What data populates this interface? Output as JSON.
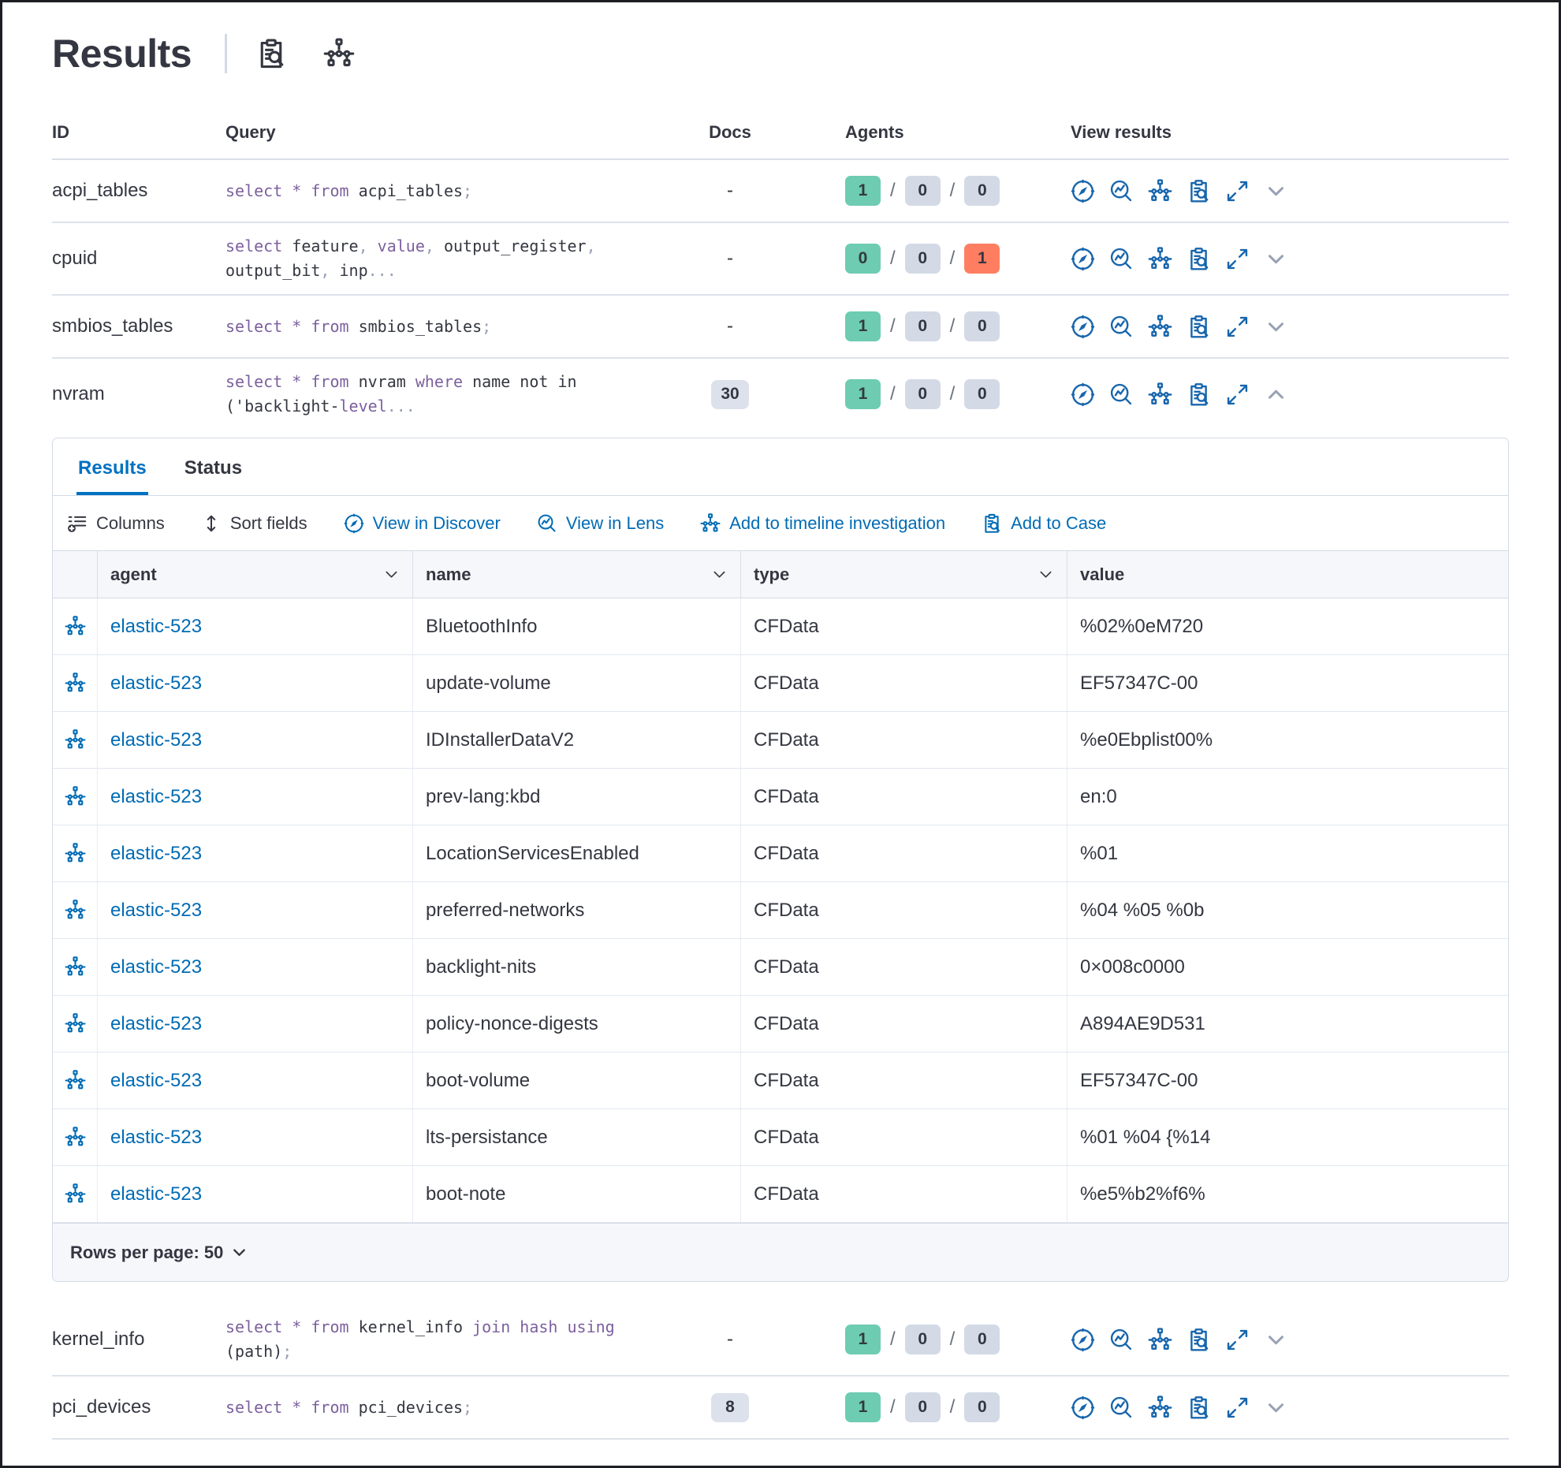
{
  "header": {
    "title": "Results",
    "icons": [
      "clipboard-search",
      "timeline"
    ]
  },
  "colors": {
    "link_blue": "#006bb4",
    "active_tab_blue": "#0071c2",
    "keyword_purple": "#7c609e",
    "badge_green": "#6dccb1",
    "badge_gray": "#d3dae6",
    "badge_red": "#ff7e62"
  },
  "table": {
    "headers": [
      "ID",
      "Query",
      "Docs",
      "Agents",
      "View results"
    ],
    "view_actions": [
      "view-in-discover",
      "view-in-lens",
      "add-to-timeline",
      "add-to-case",
      "expand-results"
    ],
    "rows_top": [
      {
        "id": "acpi_tables",
        "query": [
          [
            "select",
            "kw"
          ],
          [
            " * ",
            "kw"
          ],
          [
            "from",
            "kw"
          ],
          [
            " acpi_tables",
            "id"
          ],
          [
            ";",
            "pn"
          ]
        ],
        "docs": "-",
        "docs_badge": false,
        "agents": [
          [
            "1",
            "green"
          ],
          [
            "0",
            "gray"
          ],
          [
            "0",
            "gray"
          ]
        ],
        "expanded": false
      },
      {
        "id": "cpuid",
        "query": [
          [
            "select",
            "kw"
          ],
          [
            " feature",
            "id"
          ],
          [
            ",",
            "pn"
          ],
          [
            " value",
            "kw"
          ],
          [
            ",",
            "pn"
          ],
          [
            " output_register",
            "id"
          ],
          [
            ",",
            "pn"
          ],
          [
            "\noutput_bit",
            "id"
          ],
          [
            ",",
            "pn"
          ],
          [
            " inp",
            "id"
          ],
          [
            "...",
            "pn"
          ]
        ],
        "docs": "-",
        "docs_badge": false,
        "agents": [
          [
            "0",
            "green"
          ],
          [
            "0",
            "gray"
          ],
          [
            "1",
            "red"
          ]
        ],
        "expanded": false
      },
      {
        "id": "smbios_tables",
        "query": [
          [
            "select",
            "kw"
          ],
          [
            " * ",
            "kw"
          ],
          [
            "from",
            "kw"
          ],
          [
            " smbios_tables",
            "id"
          ],
          [
            ";",
            "pn"
          ]
        ],
        "docs": "-",
        "docs_badge": false,
        "agents": [
          [
            "1",
            "green"
          ],
          [
            "0",
            "gray"
          ],
          [
            "0",
            "gray"
          ]
        ],
        "expanded": false
      },
      {
        "id": "nvram",
        "query": [
          [
            "select",
            "kw"
          ],
          [
            " * ",
            "kw"
          ],
          [
            "from",
            "kw"
          ],
          [
            " nvram ",
            "id"
          ],
          [
            "where",
            "kw"
          ],
          [
            " name not in",
            "id"
          ],
          [
            "\n('backlight-",
            "id"
          ],
          [
            "level",
            "kw"
          ],
          [
            "...",
            "pn"
          ]
        ],
        "docs": "30",
        "docs_badge": true,
        "agents": [
          [
            "1",
            "green"
          ],
          [
            "0",
            "gray"
          ],
          [
            "0",
            "gray"
          ]
        ],
        "expanded": true
      }
    ],
    "rows_bottom": [
      {
        "id": "kernel_info",
        "query": [
          [
            "select",
            "kw"
          ],
          [
            " * ",
            "kw"
          ],
          [
            "from",
            "kw"
          ],
          [
            " kernel_info ",
            "id"
          ],
          [
            "join hash using",
            "kw"
          ],
          [
            " (path)",
            "id"
          ],
          [
            ";",
            "pn"
          ]
        ],
        "docs": "-",
        "docs_badge": false,
        "agents": [
          [
            "1",
            "green"
          ],
          [
            "0",
            "gray"
          ],
          [
            "0",
            "gray"
          ]
        ],
        "expanded": false
      },
      {
        "id": "pci_devices",
        "query": [
          [
            "select",
            "kw"
          ],
          [
            " * ",
            "kw"
          ],
          [
            "from",
            "kw"
          ],
          [
            " pci_devices",
            "id"
          ],
          [
            ";",
            "pn"
          ]
        ],
        "docs": "8",
        "docs_badge": true,
        "agents": [
          [
            "1",
            "green"
          ],
          [
            "0",
            "gray"
          ],
          [
            "0",
            "gray"
          ]
        ],
        "expanded": false
      }
    ]
  },
  "panel": {
    "tabs": [
      {
        "label": "Results",
        "active": true
      },
      {
        "label": "Status",
        "active": false
      }
    ],
    "toolbar": [
      {
        "label": "Columns",
        "icon": "columns-add",
        "style": "dark"
      },
      {
        "label": "Sort fields",
        "icon": "sort-fields",
        "style": "dark"
      },
      {
        "label": "View in Discover",
        "icon": "compass",
        "style": "blue"
      },
      {
        "label": "View in Lens",
        "icon": "lens",
        "style": "blue"
      },
      {
        "label": "Add to timeline investigation",
        "icon": "timeline",
        "style": "blue"
      },
      {
        "label": "Add to Case",
        "icon": "clipboard-search",
        "style": "blue"
      }
    ],
    "grid": {
      "columns": [
        "agent",
        "name",
        "type",
        "value"
      ],
      "row_icon": "timeline",
      "rows": [
        {
          "agent": "elastic-523",
          "name": "BluetoothInfo",
          "type": "CFData",
          "value": "%02%0eM720"
        },
        {
          "agent": "elastic-523",
          "name": "update-volume",
          "type": "CFData",
          "value": "EF57347C-00"
        },
        {
          "agent": "elastic-523",
          "name": "IDInstallerDataV2",
          "type": "CFData",
          "value": "%e0Ebplist00%"
        },
        {
          "agent": "elastic-523",
          "name": "prev-lang:kbd",
          "type": "CFData",
          "value": "en:0"
        },
        {
          "agent": "elastic-523",
          "name": "LocationServicesEnabled",
          "type": "CFData",
          "value": "%01"
        },
        {
          "agent": "elastic-523",
          "name": "preferred-networks",
          "type": "CFData",
          "value": "%04 %05 %0b"
        },
        {
          "agent": "elastic-523",
          "name": "backlight-nits",
          "type": "CFData",
          "value": "0×008c0000"
        },
        {
          "agent": "elastic-523",
          "name": "policy-nonce-digests",
          "type": "CFData",
          "value": "A894AE9D531"
        },
        {
          "agent": "elastic-523",
          "name": "boot-volume",
          "type": "CFData",
          "value": "EF57347C-00"
        },
        {
          "agent": "elastic-523",
          "name": "lts-persistance",
          "type": "CFData",
          "value": "%01 %04 {%14"
        },
        {
          "agent": "elastic-523",
          "name": "boot-note",
          "type": "CFData",
          "value": "%e5%b2%f6%"
        }
      ]
    },
    "footer": {
      "rows_per_page_label": "Rows per page: 50"
    }
  }
}
